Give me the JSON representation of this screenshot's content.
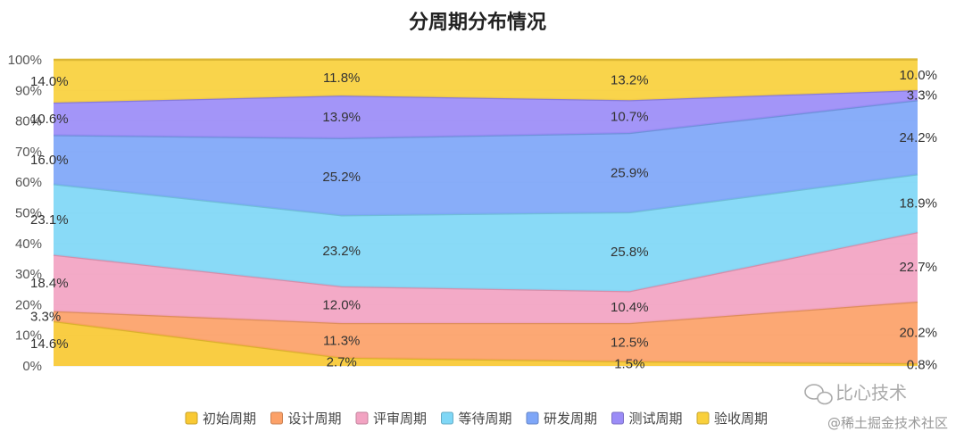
{
  "chart_data": {
    "type": "area",
    "stacked": true,
    "percent": true,
    "title": "分周期分布情况",
    "ylim": [
      0,
      100
    ],
    "yticks": [
      "0%",
      "10%",
      "20%",
      "30%",
      "40%",
      "50%",
      "60%",
      "70%",
      "80%",
      "90%",
      "100%"
    ],
    "x": [
      1,
      2,
      3,
      4
    ],
    "grid": true,
    "legend_position": "bottom",
    "series": [
      {
        "name": "初始周期",
        "color": "#f9c933",
        "values": [
          14.6,
          2.7,
          1.5,
          0.8
        ],
        "labels": [
          "14.6%",
          "2.7%",
          "1.5%",
          "0.8%"
        ]
      },
      {
        "name": "设计周期",
        "color": "#fca168",
        "values": [
          3.3,
          11.3,
          12.5,
          20.2
        ],
        "labels": [
          "3.3%",
          "11.3%",
          "12.5%",
          "20.2%"
        ]
      },
      {
        "name": "评审周期",
        "color": "#f2a3c2",
        "values": [
          18.4,
          12.0,
          10.4,
          22.7
        ],
        "labels": [
          "18.4%",
          "12.0%",
          "10.4%",
          "22.7%"
        ]
      },
      {
        "name": "等待周期",
        "color": "#7fd7f6",
        "values": [
          23.1,
          23.2,
          25.8,
          18.9
        ],
        "labels": [
          "23.1%",
          "23.2%",
          "25.8%",
          "18.9%"
        ]
      },
      {
        "name": "研发周期",
        "color": "#7ea6f8",
        "values": [
          16.0,
          25.2,
          25.9,
          24.2
        ],
        "labels": [
          "16.0%",
          "25.2%",
          "25.9%",
          "24.2%"
        ]
      },
      {
        "name": "测试周期",
        "color": "#9b8cf7",
        "values": [
          10.6,
          13.9,
          10.7,
          3.3
        ],
        "labels": [
          "10.6%",
          "13.9%",
          "10.7%",
          "3.3%"
        ]
      },
      {
        "name": "验收周期",
        "color": "#f9d03c",
        "values": [
          14.0,
          11.8,
          13.2,
          10.0
        ],
        "labels": [
          "14.0%",
          "11.8%",
          "13.2%",
          "10.0%"
        ]
      }
    ]
  },
  "watermark": {
    "line1": "比心技术",
    "line2": "@稀土掘金技术社区"
  }
}
